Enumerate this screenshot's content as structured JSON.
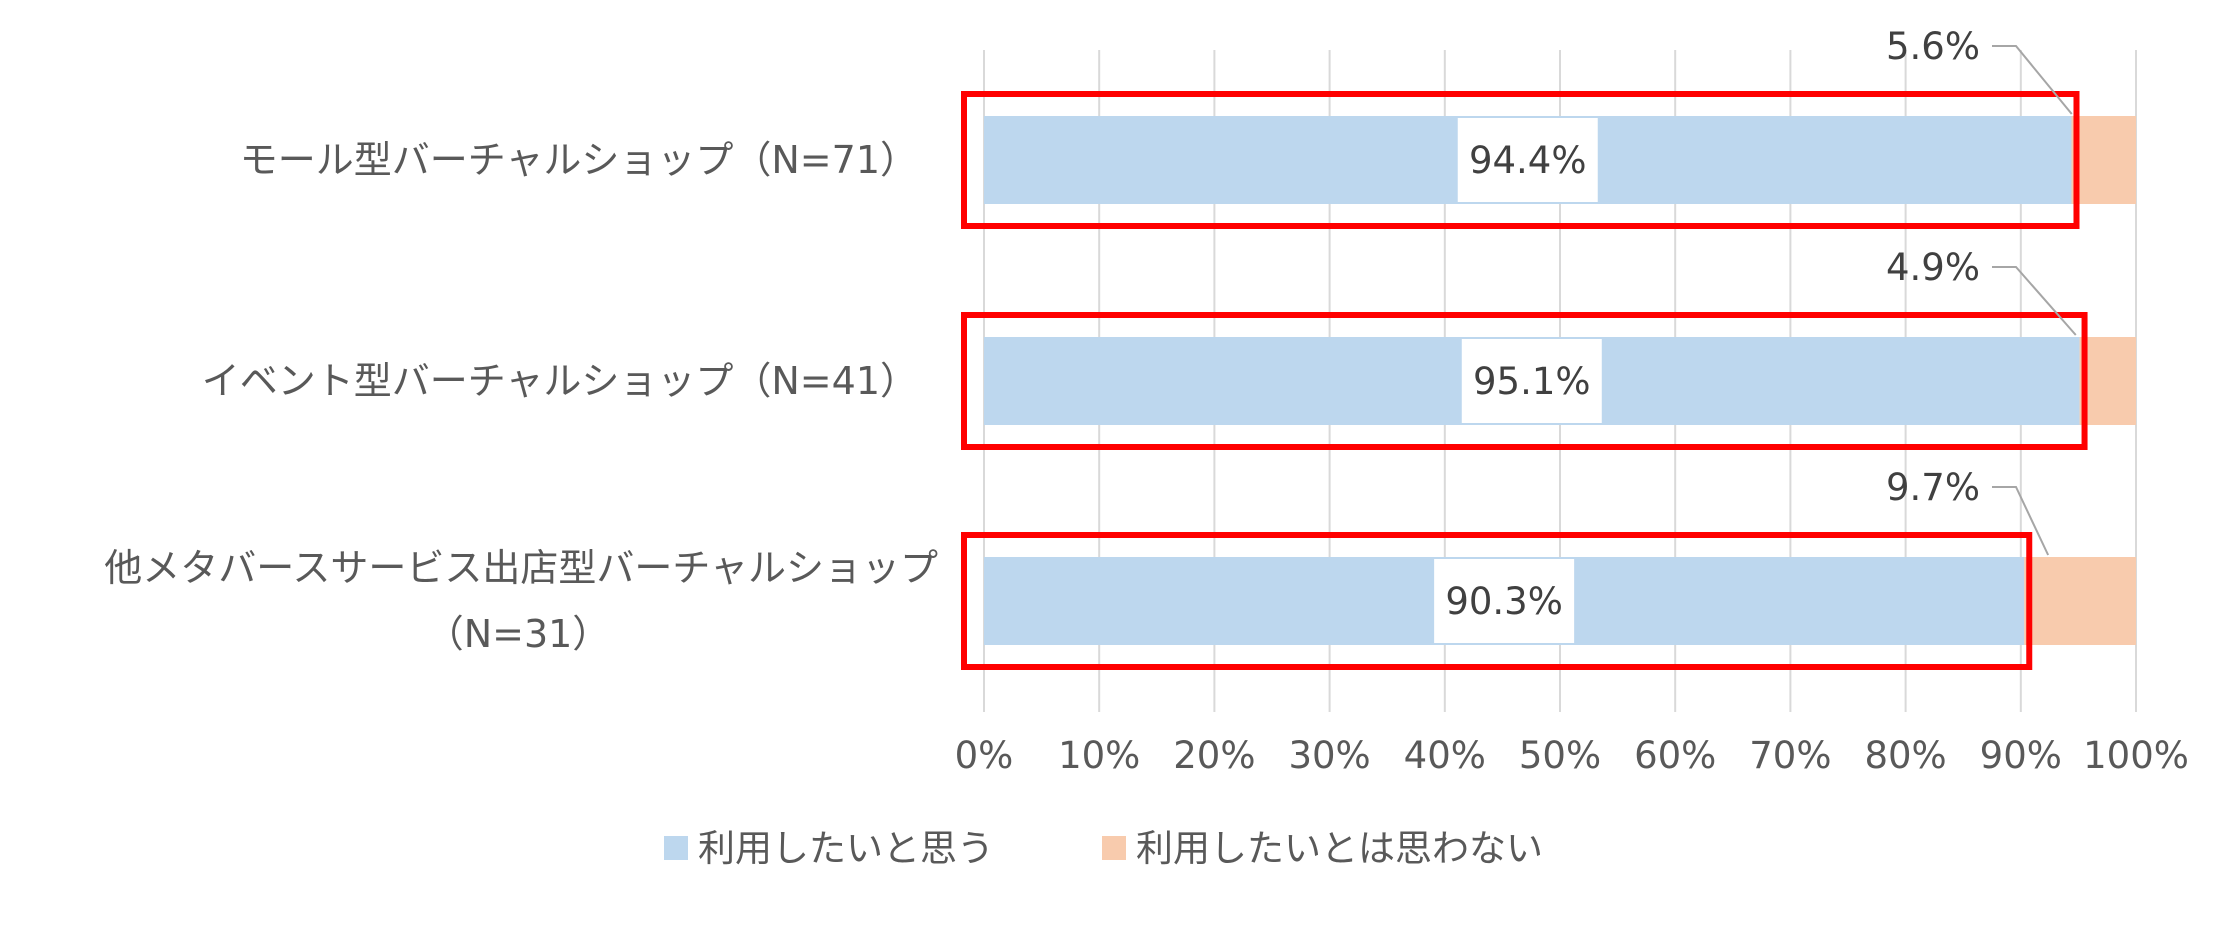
{
  "chart_data": {
    "type": "bar",
    "orientation": "horizontal",
    "stacked": true,
    "categories": [
      [
        "モール型バーチャルショップ（N=71）"
      ],
      [
        "イベント型バーチャルショップ（N=41）"
      ],
      [
        "他メタバースサービス出店型バーチャルショップ",
        "（N=31）"
      ]
    ],
    "series": [
      {
        "name": "利用したいと思う",
        "values": [
          94.4,
          95.1,
          90.3
        ],
        "color": "#BDD7EE",
        "labels": [
          "94.4%",
          "95.1%",
          "90.3%"
        ]
      },
      {
        "name": "利用したいとは思わない",
        "values": [
          5.6,
          4.9,
          9.7
        ],
        "color": "#F8CBAD",
        "labels": [
          "5.6%",
          "4.9%",
          "9.7%"
        ]
      }
    ],
    "xlim": [
      0,
      100
    ],
    "x_ticks": [
      "0%",
      "10%",
      "20%",
      "30%",
      "40%",
      "50%",
      "60%",
      "70%",
      "80%",
      "90%",
      "100%"
    ],
    "grid": true,
    "legend_position": "bottom",
    "highlight": {
      "color": "#FF0000",
      "series": "利用したいと思う"
    }
  }
}
